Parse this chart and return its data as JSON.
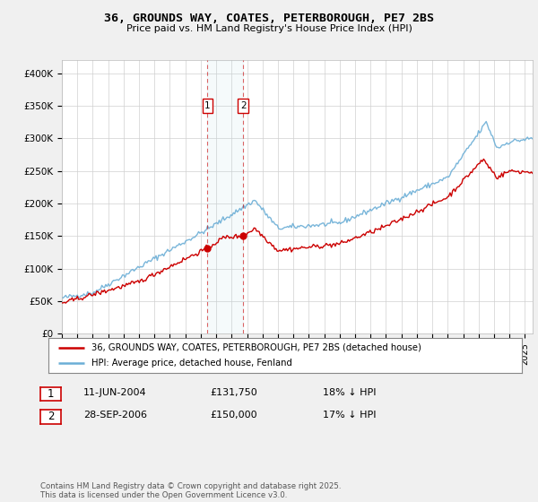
{
  "title": "36, GROUNDS WAY, COATES, PETERBOROUGH, PE7 2BS",
  "subtitle": "Price paid vs. HM Land Registry's House Price Index (HPI)",
  "ylabel_ticks": [
    "£0",
    "£50K",
    "£100K",
    "£150K",
    "£200K",
    "£250K",
    "£300K",
    "£350K",
    "£400K"
  ],
  "ytick_values": [
    0,
    50000,
    100000,
    150000,
    200000,
    250000,
    300000,
    350000,
    400000
  ],
  "ylim": [
    0,
    420000
  ],
  "xlim_start": 1995.0,
  "xlim_end": 2025.5,
  "hpi_color": "#6baed6",
  "price_color": "#cc0000",
  "transaction1_date": 2004.44,
  "transaction1_price": 131750,
  "transaction1_label": "1",
  "transaction1_text": "11-JUN-2004",
  "transaction1_price_text": "£131,750",
  "transaction1_hpi_text": "18% ↓ HPI",
  "transaction2_date": 2006.74,
  "transaction2_price": 150000,
  "transaction2_label": "2",
  "transaction2_text": "28-SEP-2006",
  "transaction2_price_text": "£150,000",
  "transaction2_hpi_text": "17% ↓ HPI",
  "legend_property": "36, GROUNDS WAY, COATES, PETERBOROUGH, PE7 2BS (detached house)",
  "legend_hpi": "HPI: Average price, detached house, Fenland",
  "footer": "Contains HM Land Registry data © Crown copyright and database right 2025.\nThis data is licensed under the Open Government Licence v3.0.",
  "background_color": "#f0f0f0",
  "plot_bg_color": "#ffffff"
}
